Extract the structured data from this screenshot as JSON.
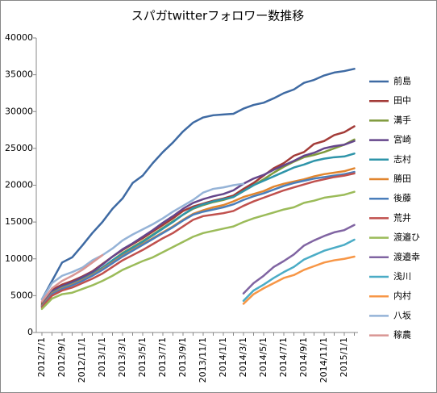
{
  "chart_data": {
    "type": "line",
    "title": "スパガtwitterフォロワー数推移",
    "categories": [
      "2012/7/1",
      null,
      "2012/9/1",
      null,
      "2012/11/1",
      null,
      "2013/1/1",
      null,
      "2013/3/1",
      null,
      "2013/5/1",
      null,
      "2013/7/1",
      null,
      "2013/9/1",
      null,
      "2013/11/1",
      null,
      "2014/1/1",
      null,
      "2014/3/1",
      null,
      "2014/5/1",
      null,
      "2014/7/1",
      null,
      "2014/9/1",
      null,
      "2014/11/1",
      null,
      "2015/1/1",
      null
    ],
    "ylim": [
      0,
      40000
    ],
    "yticks": [
      0,
      5000,
      10000,
      15000,
      20000,
      25000,
      30000,
      35000,
      40000
    ],
    "grid": false,
    "legend_position": "right",
    "series": [
      {
        "name": "前島",
        "color": "#3e6aa3",
        "values": [
          4500,
          7000,
          9500,
          10200,
          11800,
          13500,
          15000,
          16800,
          18200,
          20300,
          21300,
          23000,
          24500,
          25800,
          27300,
          28500,
          29200,
          29500,
          29600,
          29700,
          30400,
          30900,
          31200,
          31800,
          32500,
          33000,
          33900,
          34300,
          34900,
          35300,
          35500,
          35800
        ]
      },
      {
        "name": "田中",
        "color": "#a33b38",
        "values": [
          4000,
          5800,
          6500,
          7000,
          7600,
          8300,
          9300,
          10300,
          11200,
          12000,
          12800,
          13700,
          14600,
          15500,
          16500,
          17100,
          17500,
          17900,
          18200,
          18600,
          19500,
          20300,
          21300,
          22300,
          23000,
          24000,
          24500,
          25600,
          26000,
          26800,
          27200,
          28000
        ]
      },
      {
        "name": "溝手",
        "color": "#7f9a3d",
        "values": [
          3800,
          5500,
          6200,
          6700,
          7300,
          8000,
          8800,
          9800,
          10800,
          11600,
          12400,
          13300,
          14200,
          15100,
          16000,
          16800,
          17300,
          17700,
          18000,
          18400,
          19200,
          20000,
          20800,
          21700,
          22500,
          23200,
          23800,
          24100,
          24500,
          25000,
          25500,
          26200
        ]
      },
      {
        "name": "宮崎",
        "color": "#65468b",
        "values": [
          3700,
          5600,
          6300,
          6800,
          7500,
          8200,
          9200,
          10300,
          11300,
          12100,
          13000,
          13900,
          14900,
          15800,
          16800,
          17600,
          18100,
          18500,
          18800,
          19300,
          20200,
          20900,
          21400,
          22100,
          22700,
          23300,
          24000,
          24400,
          25000,
          25300,
          25500,
          26000
        ]
      },
      {
        "name": "志村",
        "color": "#2e94a9",
        "values": [
          3600,
          5400,
          6100,
          6600,
          7200,
          7900,
          8800,
          9800,
          10700,
          11500,
          12300,
          13200,
          14100,
          15000,
          16000,
          16900,
          17400,
          17800,
          18100,
          18400,
          19200,
          20000,
          20600,
          21200,
          21800,
          22400,
          22800,
          23300,
          23600,
          23800,
          23900,
          24300
        ]
      },
      {
        "name": "勝田",
        "color": "#e1852e",
        "values": [
          3600,
          5300,
          6000,
          6500,
          7100,
          7800,
          8600,
          9500,
          10400,
          11200,
          12000,
          12800,
          13600,
          14400,
          15300,
          16100,
          16600,
          17000,
          17300,
          17800,
          18400,
          18800,
          19200,
          19800,
          20200,
          20500,
          20800,
          21200,
          21500,
          21700,
          21900,
          22300
        ]
      },
      {
        "name": "後藤",
        "color": "#4a7ebb",
        "values": [
          3500,
          5200,
          5900,
          6400,
          7000,
          7700,
          8500,
          9400,
          10300,
          11100,
          11900,
          12700,
          13500,
          14300,
          15200,
          16000,
          16400,
          16700,
          17000,
          17400,
          18000,
          18500,
          18900,
          19400,
          19900,
          20300,
          20600,
          20900,
          21100,
          21300,
          21500,
          21800
        ]
      },
      {
        "name": "荒井",
        "color": "#c0504d",
        "values": [
          3400,
          5000,
          5700,
          6100,
          6700,
          7300,
          8000,
          8900,
          9800,
          10500,
          11200,
          12000,
          12800,
          13500,
          14400,
          15300,
          15800,
          16000,
          16200,
          16500,
          17200,
          17800,
          18300,
          18800,
          19300,
          19700,
          20100,
          20500,
          20800,
          21100,
          21300,
          21600
        ]
      },
      {
        "name": "渡邉ひ",
        "color": "#9bbb59",
        "values": [
          3200,
          4600,
          5200,
          5400,
          5900,
          6400,
          7000,
          7700,
          8500,
          9100,
          9700,
          10200,
          10900,
          11600,
          12300,
          13000,
          13500,
          13800,
          14100,
          14400,
          15000,
          15500,
          15900,
          16300,
          16700,
          17000,
          17600,
          17900,
          18300,
          18500,
          18700,
          19100
        ]
      },
      {
        "name": "渡邉幸",
        "color": "#8064a2",
        "values": [
          null,
          null,
          null,
          null,
          null,
          null,
          null,
          null,
          null,
          null,
          null,
          null,
          null,
          null,
          null,
          null,
          null,
          null,
          null,
          null,
          5300,
          6700,
          7700,
          8900,
          9700,
          10600,
          11800,
          12500,
          13100,
          13600,
          13900,
          14600
        ]
      },
      {
        "name": "浅川",
        "color": "#4bacc6",
        "values": [
          null,
          null,
          null,
          null,
          null,
          null,
          null,
          null,
          null,
          null,
          null,
          null,
          null,
          null,
          null,
          null,
          null,
          null,
          null,
          null,
          4300,
          5700,
          6500,
          7400,
          8200,
          8900,
          9900,
          10500,
          11100,
          11500,
          11900,
          12600
        ]
      },
      {
        "name": "内村",
        "color": "#f79646",
        "values": [
          null,
          null,
          null,
          null,
          null,
          null,
          null,
          null,
          null,
          null,
          null,
          null,
          null,
          null,
          null,
          null,
          null,
          null,
          null,
          null,
          3900,
          5200,
          6000,
          6700,
          7400,
          7800,
          8500,
          9000,
          9500,
          9800,
          10000,
          10300
        ]
      },
      {
        "name": "八坂",
        "color": "#95b3d7",
        "values": [
          4500,
          6700,
          7700,
          8200,
          8800,
          9800,
          10500,
          11400,
          12500,
          13300,
          14000,
          14700,
          15500,
          16400,
          17200,
          18000,
          19000,
          19500,
          19700,
          20000,
          20200,
          null,
          null,
          null,
          null,
          null,
          null,
          null,
          null,
          null,
          null,
          null
        ]
      },
      {
        "name": "稼農",
        "color": "#d99694",
        "values": [
          4200,
          6000,
          7000,
          7700,
          8500,
          9500,
          10500,
          null,
          null,
          null,
          null,
          null,
          null,
          null,
          null,
          null,
          null,
          null,
          null,
          null,
          null,
          null,
          null,
          null,
          null,
          null,
          null,
          null,
          null,
          null,
          null,
          null
        ]
      }
    ]
  }
}
